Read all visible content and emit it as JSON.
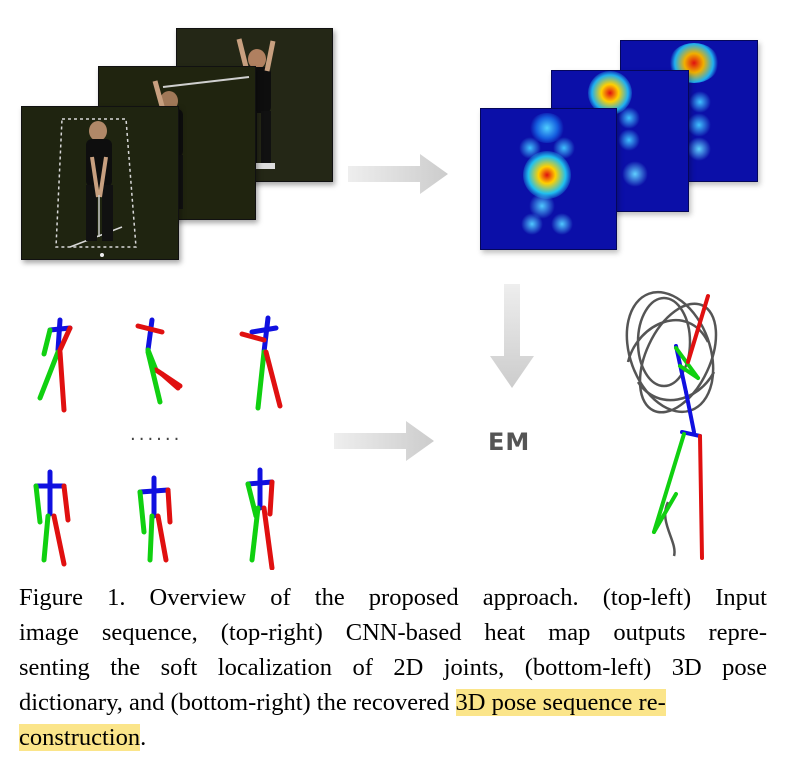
{
  "figure": {
    "em_label": "EM",
    "ellipsis": "......",
    "colors": {
      "arrow": "#d9d9d9",
      "spine": "#1010e0",
      "left_limb": "#e01010",
      "right_limb": "#10d010",
      "trajectory": "#555555",
      "heatmap_bg": "#0b0fa8",
      "highlight": "#fbe58a"
    }
  },
  "caption": {
    "lines": [
      "Figure 1. Overview of the proposed approach.  (top-left) Input",
      "image sequence, (top-right) CNN-based heat map outputs repre-",
      "senting the soft localization of 2D joints, (bottom-left) 3D pose",
      "dictionary, and (bottom-right) the recovered "
    ],
    "highlight_a": "3D pose sequence re-",
    "highlight_b": "construction",
    "tail": "."
  }
}
